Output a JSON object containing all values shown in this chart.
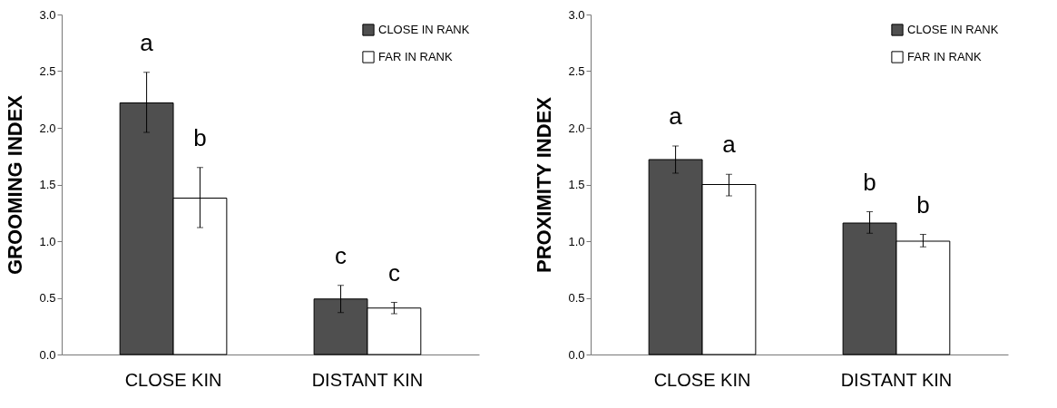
{
  "chart_data": [
    {
      "type": "bar",
      "ylabel": "GROOMING INDEX",
      "categories": [
        "CLOSE KIN",
        "DISTANT KIN"
      ],
      "series": [
        {
          "name": "CLOSE IN RANK",
          "color": "#4f4f4f",
          "values": [
            2.22,
            0.49
          ],
          "errors": [
            [
              1.96,
              2.49
            ],
            [
              0.37,
              0.61
            ]
          ]
        },
        {
          "name": "FAR IN RANK",
          "color": "#ffffff",
          "values": [
            1.38,
            0.41
          ],
          "errors": [
            [
              1.12,
              1.65
            ],
            [
              0.36,
              0.46
            ]
          ]
        }
      ],
      "ylim": [
        0,
        3
      ],
      "yticks": [
        {
          "value": 0,
          "label": "0.0"
        },
        {
          "value": 0.5,
          "label": "0.5"
        },
        {
          "value": 1,
          "label": "1.0"
        },
        {
          "value": 1.5,
          "label": "1.5"
        },
        {
          "value": 2,
          "label": "2.0"
        },
        {
          "value": 2.5,
          "label": "2.5"
        },
        {
          "value": 3,
          "label": "3.0"
        }
      ],
      "annotations": [
        "a",
        "b",
        "c",
        "c"
      ],
      "legend": "top right",
      "grid": false
    },
    {
      "type": "bar",
      "ylabel": "PROXIMITY INDEX",
      "categories": [
        "CLOSE KIN",
        "DISTANT KIN"
      ],
      "series": [
        {
          "name": "CLOSE IN RANK",
          "color": "#4f4f4f",
          "values": [
            1.72,
            1.16
          ],
          "errors": [
            [
              1.6,
              1.84
            ],
            [
              1.07,
              1.26
            ]
          ]
        },
        {
          "name": "FAR IN RANK",
          "color": "#ffffff",
          "values": [
            1.5,
            1.0
          ],
          "errors": [
            [
              1.4,
              1.59
            ],
            [
              0.95,
              1.06
            ]
          ]
        }
      ],
      "ylim": [
        0,
        3
      ],
      "yticks": [
        {
          "value": 0,
          "label": "0.0"
        },
        {
          "value": 0.5,
          "label": "0.5"
        },
        {
          "value": 1,
          "label": "1.0"
        },
        {
          "value": 1.5,
          "label": "1.5"
        },
        {
          "value": 2,
          "label": "2.0"
        },
        {
          "value": 2.5,
          "label": "2.5"
        },
        {
          "value": 3,
          "label": "3.0"
        }
      ],
      "annotations": [
        "a",
        "a",
        "b",
        "b"
      ],
      "legend": "top right",
      "grid": false
    }
  ]
}
